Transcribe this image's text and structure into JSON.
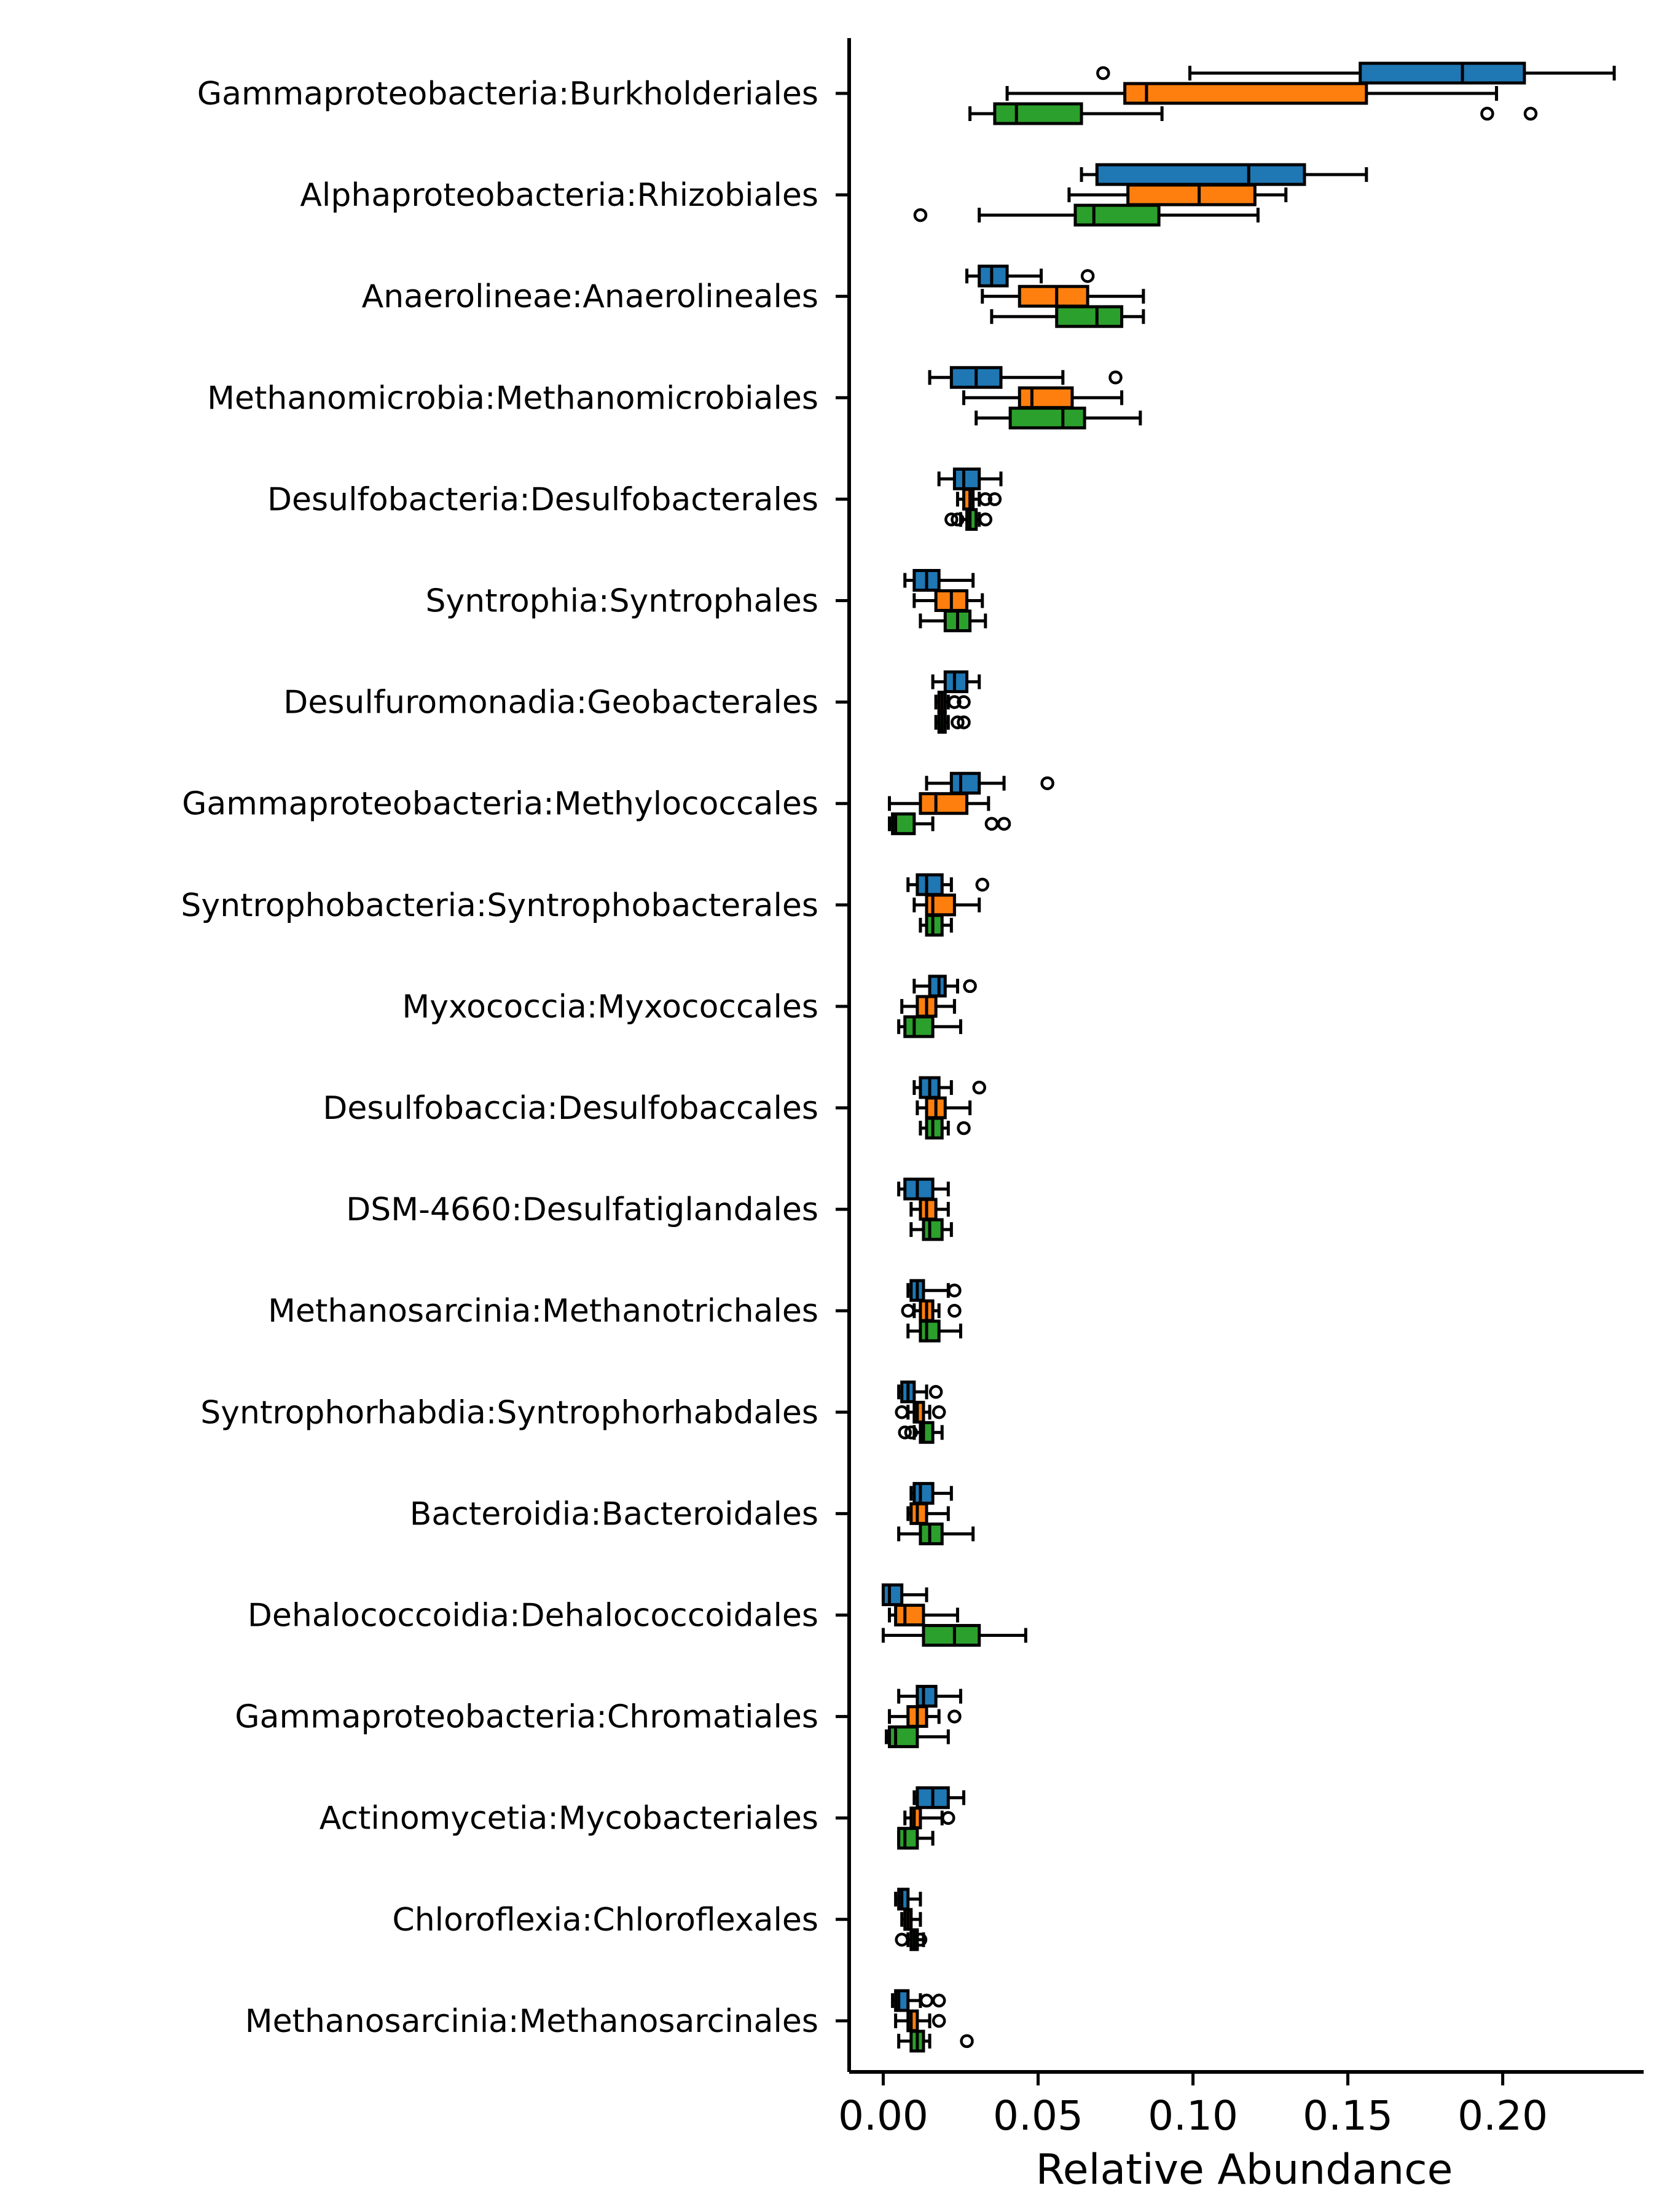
{
  "chart_data": {
    "type": "boxplot",
    "orientation": "horizontal",
    "xlabel": "Relative Abundance",
    "ylabel": "",
    "title": "",
    "xlim": [
      -0.011,
      0.2455
    ],
    "xticks": [
      0.0,
      0.05,
      0.1,
      0.15,
      0.2
    ],
    "xtick_labels": [
      "0.00",
      "0.05",
      "0.10",
      "0.15",
      "0.20"
    ],
    "grid": false,
    "legend": null,
    "series_colors": [
      "#1f77b4",
      "#ff7f0e",
      "#2ca02c"
    ],
    "categories": [
      "Gammaproteobacteria:Burkholderiales",
      "Alphaproteobacteria:Rhizobiales",
      "Anaerolineae:Anaerolineales",
      "Methanomicrobia:Methanomicrobiales",
      "Desulfobacteria:Desulfobacterales",
      "Syntrophia:Syntrophales",
      "Desulfuromonadia:Geobacterales",
      "Gammaproteobacteria:Methylococcales",
      "Syntrophobacteria:Syntrophobacterales",
      "Myxococcia:Myxococcales",
      "Desulfobaccia:Desulfobaccales",
      "DSM-4660:Desulfatiglandales",
      "Methanosarcinia:Methanotrichales",
      "Syntrophorhabdia:Syntrophorhabdales",
      "Bacteroidia:Bacteroidales",
      "Dehalococcoidia:Dehalococcoidales",
      "Gammaproteobacteria:Chromatiales",
      "Actinomycetia:Mycobacteriales",
      "Chloroflexia:Chloroflexales",
      "Methanosarcinia:Methanosarcinales"
    ],
    "boxes": [
      [
        {
          "whislo": 0.099,
          "q1": 0.154,
          "med": 0.187,
          "q3": 0.207,
          "whishi": 0.236,
          "fliers": [
            0.071
          ]
        },
        {
          "whislo": 0.04,
          "q1": 0.078,
          "med": 0.085,
          "q3": 0.156,
          "whishi": 0.198,
          "fliers": []
        },
        {
          "whislo": 0.028,
          "q1": 0.036,
          "med": 0.043,
          "q3": 0.064,
          "whishi": 0.09,
          "fliers": [
            0.195,
            0.209
          ]
        }
      ],
      [
        {
          "whislo": 0.064,
          "q1": 0.069,
          "med": 0.118,
          "q3": 0.136,
          "whishi": 0.156,
          "fliers": []
        },
        {
          "whislo": 0.06,
          "q1": 0.079,
          "med": 0.102,
          "q3": 0.12,
          "whishi": 0.13,
          "fliers": []
        },
        {
          "whislo": 0.031,
          "q1": 0.062,
          "med": 0.068,
          "q3": 0.089,
          "whishi": 0.121,
          "fliers": [
            0.012
          ]
        }
      ],
      [
        {
          "whislo": 0.027,
          "q1": 0.031,
          "med": 0.035,
          "q3": 0.04,
          "whishi": 0.051,
          "fliers": [
            0.066
          ]
        },
        {
          "whislo": 0.032,
          "q1": 0.044,
          "med": 0.056,
          "q3": 0.066,
          "whishi": 0.084,
          "fliers": []
        },
        {
          "whislo": 0.035,
          "q1": 0.056,
          "med": 0.069,
          "q3": 0.077,
          "whishi": 0.084,
          "fliers": []
        }
      ],
      [
        {
          "whislo": 0.015,
          "q1": 0.022,
          "med": 0.03,
          "q3": 0.038,
          "whishi": 0.058,
          "fliers": [
            0.075
          ]
        },
        {
          "whislo": 0.026,
          "q1": 0.044,
          "med": 0.048,
          "q3": 0.061,
          "whishi": 0.077,
          "fliers": []
        },
        {
          "whislo": 0.03,
          "q1": 0.041,
          "med": 0.058,
          "q3": 0.065,
          "whishi": 0.083,
          "fliers": []
        }
      ],
      [
        {
          "whislo": 0.018,
          "q1": 0.023,
          "med": 0.026,
          "q3": 0.031,
          "whishi": 0.038,
          "fliers": []
        },
        {
          "whislo": 0.024,
          "q1": 0.026,
          "med": 0.028,
          "q3": 0.029,
          "whishi": 0.031,
          "fliers": [
            0.033,
            0.036
          ]
        },
        {
          "whislo": 0.025,
          "q1": 0.027,
          "med": 0.028,
          "q3": 0.03,
          "whishi": 0.031,
          "fliers": [
            0.022,
            0.024,
            0.033
          ]
        }
      ],
      [
        {
          "whislo": 0.007,
          "q1": 0.01,
          "med": 0.014,
          "q3": 0.018,
          "whishi": 0.029,
          "fliers": []
        },
        {
          "whislo": 0.01,
          "q1": 0.017,
          "med": 0.022,
          "q3": 0.027,
          "whishi": 0.032,
          "fliers": []
        },
        {
          "whislo": 0.012,
          "q1": 0.02,
          "med": 0.024,
          "q3": 0.028,
          "whishi": 0.033,
          "fliers": []
        }
      ],
      [
        {
          "whislo": 0.016,
          "q1": 0.02,
          "med": 0.023,
          "q3": 0.027,
          "whishi": 0.031,
          "fliers": []
        },
        {
          "whislo": 0.017,
          "q1": 0.018,
          "med": 0.019,
          "q3": 0.02,
          "whishi": 0.021,
          "fliers": [
            0.023,
            0.026
          ]
        },
        {
          "whislo": 0.017,
          "q1": 0.018,
          "med": 0.019,
          "q3": 0.02,
          "whishi": 0.021,
          "fliers": [
            0.024,
            0.026
          ]
        }
      ],
      [
        {
          "whislo": 0.014,
          "q1": 0.022,
          "med": 0.025,
          "q3": 0.031,
          "whishi": 0.039,
          "fliers": [
            0.053
          ]
        },
        {
          "whislo": 0.002,
          "q1": 0.012,
          "med": 0.017,
          "q3": 0.027,
          "whishi": 0.034,
          "fliers": []
        },
        {
          "whislo": 0.002,
          "q1": 0.003,
          "med": 0.004,
          "q3": 0.01,
          "whishi": 0.016,
          "fliers": [
            0.035,
            0.039
          ]
        }
      ],
      [
        {
          "whislo": 0.008,
          "q1": 0.011,
          "med": 0.014,
          "q3": 0.019,
          "whishi": 0.022,
          "fliers": [
            0.032
          ]
        },
        {
          "whislo": 0.01,
          "q1": 0.014,
          "med": 0.016,
          "q3": 0.023,
          "whishi": 0.031,
          "fliers": []
        },
        {
          "whislo": 0.012,
          "q1": 0.014,
          "med": 0.016,
          "q3": 0.019,
          "whishi": 0.022,
          "fliers": []
        }
      ],
      [
        {
          "whislo": 0.01,
          "q1": 0.015,
          "med": 0.018,
          "q3": 0.02,
          "whishi": 0.024,
          "fliers": [
            0.028
          ]
        },
        {
          "whislo": 0.006,
          "q1": 0.011,
          "med": 0.014,
          "q3": 0.017,
          "whishi": 0.023,
          "fliers": []
        },
        {
          "whislo": 0.005,
          "q1": 0.007,
          "med": 0.01,
          "q3": 0.016,
          "whishi": 0.025,
          "fliers": []
        }
      ],
      [
        {
          "whislo": 0.01,
          "q1": 0.012,
          "med": 0.015,
          "q3": 0.018,
          "whishi": 0.022,
          "fliers": [
            0.031
          ]
        },
        {
          "whislo": 0.011,
          "q1": 0.014,
          "med": 0.017,
          "q3": 0.02,
          "whishi": 0.028,
          "fliers": []
        },
        {
          "whislo": 0.012,
          "q1": 0.014,
          "med": 0.016,
          "q3": 0.019,
          "whishi": 0.021,
          "fliers": [
            0.026
          ]
        }
      ],
      [
        {
          "whislo": 0.005,
          "q1": 0.007,
          "med": 0.011,
          "q3": 0.016,
          "whishi": 0.021,
          "fliers": []
        },
        {
          "whislo": 0.009,
          "q1": 0.012,
          "med": 0.014,
          "q3": 0.017,
          "whishi": 0.021,
          "fliers": []
        },
        {
          "whislo": 0.009,
          "q1": 0.013,
          "med": 0.015,
          "q3": 0.019,
          "whishi": 0.022,
          "fliers": []
        }
      ],
      [
        {
          "whislo": 0.008,
          "q1": 0.009,
          "med": 0.011,
          "q3": 0.013,
          "whishi": 0.021,
          "fliers": [
            0.023
          ]
        },
        {
          "whislo": 0.01,
          "q1": 0.012,
          "med": 0.014,
          "q3": 0.016,
          "whishi": 0.018,
          "fliers": [
            0.008,
            0.023
          ]
        },
        {
          "whislo": 0.008,
          "q1": 0.012,
          "med": 0.014,
          "q3": 0.018,
          "whishi": 0.025,
          "fliers": []
        }
      ],
      [
        {
          "whislo": 0.005,
          "q1": 0.006,
          "med": 0.008,
          "q3": 0.01,
          "whishi": 0.014,
          "fliers": [
            0.017
          ]
        },
        {
          "whislo": 0.008,
          "q1": 0.01,
          "med": 0.011,
          "q3": 0.013,
          "whishi": 0.015,
          "fliers": [
            0.006,
            0.018
          ]
        },
        {
          "whislo": 0.01,
          "q1": 0.012,
          "med": 0.013,
          "q3": 0.016,
          "whishi": 0.019,
          "fliers": [
            0.007,
            0.009
          ]
        }
      ],
      [
        {
          "whislo": 0.009,
          "q1": 0.01,
          "med": 0.012,
          "q3": 0.016,
          "whishi": 0.022,
          "fliers": []
        },
        {
          "whislo": 0.008,
          "q1": 0.009,
          "med": 0.011,
          "q3": 0.014,
          "whishi": 0.021,
          "fliers": []
        },
        {
          "whislo": 0.005,
          "q1": 0.012,
          "med": 0.015,
          "q3": 0.019,
          "whishi": 0.029,
          "fliers": []
        }
      ],
      [
        {
          "whislo": 0.0,
          "q1": 0.0,
          "med": 0.002,
          "q3": 0.006,
          "whishi": 0.014,
          "fliers": []
        },
        {
          "whislo": 0.002,
          "q1": 0.004,
          "med": 0.007,
          "q3": 0.013,
          "whishi": 0.024,
          "fliers": []
        },
        {
          "whislo": 0.0,
          "q1": 0.013,
          "med": 0.023,
          "q3": 0.031,
          "whishi": 0.046,
          "fliers": []
        }
      ],
      [
        {
          "whislo": 0.005,
          "q1": 0.011,
          "med": 0.013,
          "q3": 0.017,
          "whishi": 0.025,
          "fliers": []
        },
        {
          "whislo": 0.002,
          "q1": 0.008,
          "med": 0.011,
          "q3": 0.014,
          "whishi": 0.018,
          "fliers": [
            0.023
          ]
        },
        {
          "whislo": 0.001,
          "q1": 0.002,
          "med": 0.004,
          "q3": 0.011,
          "whishi": 0.021,
          "fliers": []
        }
      ],
      [
        {
          "whislo": 0.01,
          "q1": 0.011,
          "med": 0.016,
          "q3": 0.021,
          "whishi": 0.026,
          "fliers": []
        },
        {
          "whislo": 0.007,
          "q1": 0.009,
          "med": 0.01,
          "q3": 0.012,
          "whishi": 0.019,
          "fliers": [
            0.021
          ]
        },
        {
          "whislo": 0.005,
          "q1": 0.005,
          "med": 0.007,
          "q3": 0.011,
          "whishi": 0.016,
          "fliers": []
        }
      ],
      [
        {
          "whislo": 0.004,
          "q1": 0.005,
          "med": 0.006,
          "q3": 0.008,
          "whishi": 0.012,
          "fliers": []
        },
        {
          "whislo": 0.006,
          "q1": 0.007,
          "med": 0.008,
          "q3": 0.009,
          "whishi": 0.012,
          "fliers": []
        },
        {
          "whislo": 0.008,
          "q1": 0.009,
          "med": 0.01,
          "q3": 0.011,
          "whishi": 0.013,
          "fliers": [
            0.006,
            0.012
          ]
        }
      ],
      [
        {
          "whislo": 0.003,
          "q1": 0.004,
          "med": 0.005,
          "q3": 0.008,
          "whishi": 0.012,
          "fliers": [
            0.014,
            0.018
          ]
        },
        {
          "whislo": 0.004,
          "q1": 0.008,
          "med": 0.009,
          "q3": 0.011,
          "whishi": 0.015,
          "fliers": [
            0.018
          ]
        },
        {
          "whislo": 0.005,
          "q1": 0.009,
          "med": 0.011,
          "q3": 0.013,
          "whishi": 0.015,
          "fliers": [
            0.027
          ]
        }
      ]
    ]
  }
}
